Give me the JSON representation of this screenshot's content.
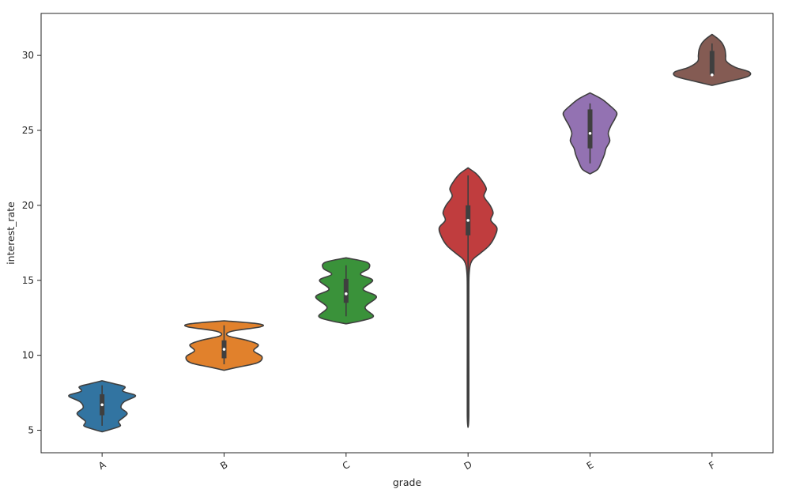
{
  "chart_data": {
    "type": "violin",
    "title": "",
    "xlabel": "grade",
    "ylabel": "interest_rate",
    "categories": [
      "A",
      "B",
      "C",
      "D",
      "E",
      "F"
    ],
    "ylim": [
      3.5,
      32.8
    ],
    "yticks": [
      5,
      10,
      15,
      20,
      25,
      30
    ],
    "grid": false,
    "legend": "none",
    "colors": [
      "#3274a1",
      "#e1812c",
      "#3a923a",
      "#c03d3e",
      "#9372b2",
      "#845b53"
    ],
    "edge_color": "#3f3f3f",
    "violins": [
      {
        "category": "A",
        "min": 5.3,
        "q1": 6.0,
        "median": 6.7,
        "q3": 7.4,
        "max": 8.0,
        "profile": [
          [
            4.9,
            0.0
          ],
          [
            5.1,
            0.28
          ],
          [
            5.3,
            0.48
          ],
          [
            5.6,
            0.44
          ],
          [
            6.1,
            0.66
          ],
          [
            6.5,
            0.5
          ],
          [
            6.9,
            0.58
          ],
          [
            7.3,
            0.88
          ],
          [
            7.6,
            0.55
          ],
          [
            7.9,
            0.6
          ],
          [
            8.1,
            0.32
          ],
          [
            8.3,
            0.0
          ]
        ]
      },
      {
        "category": "B",
        "min": 9.4,
        "q1": 9.8,
        "median": 10.4,
        "q3": 11.0,
        "max": 12.0,
        "profile": [
          [
            9.0,
            0.0
          ],
          [
            9.2,
            0.35
          ],
          [
            9.5,
            0.88
          ],
          [
            9.9,
            1.0
          ],
          [
            10.3,
            0.78
          ],
          [
            10.7,
            0.9
          ],
          [
            11.0,
            0.6
          ],
          [
            11.3,
            0.1
          ],
          [
            11.6,
            0.2
          ],
          [
            11.9,
            0.96
          ],
          [
            12.1,
            0.9
          ],
          [
            12.3,
            0.0
          ]
        ]
      },
      {
        "category": "C",
        "min": 12.6,
        "q1": 13.5,
        "median": 14.1,
        "q3": 15.1,
        "max": 16.0,
        "profile": [
          [
            12.1,
            0.0
          ],
          [
            12.3,
            0.4
          ],
          [
            12.6,
            0.72
          ],
          [
            13.2,
            0.5
          ],
          [
            13.9,
            0.8
          ],
          [
            14.4,
            0.45
          ],
          [
            15.0,
            0.7
          ],
          [
            15.4,
            0.38
          ],
          [
            15.8,
            0.6
          ],
          [
            16.2,
            0.55
          ],
          [
            16.5,
            0.0
          ]
        ]
      },
      {
        "category": "D",
        "min": 5.2,
        "q1": 18.0,
        "median": 19.0,
        "q3": 20.0,
        "max": 22.0,
        "profile": [
          [
            5.2,
            0.0
          ],
          [
            6.0,
            0.02
          ],
          [
            10.0,
            0.02
          ],
          [
            14.0,
            0.02
          ],
          [
            15.5,
            0.03
          ],
          [
            16.3,
            0.1
          ],
          [
            16.8,
            0.32
          ],
          [
            17.3,
            0.55
          ],
          [
            17.9,
            0.7
          ],
          [
            18.5,
            0.76
          ],
          [
            19.0,
            0.6
          ],
          [
            19.5,
            0.66
          ],
          [
            20.0,
            0.58
          ],
          [
            20.6,
            0.42
          ],
          [
            21.1,
            0.48
          ],
          [
            21.6,
            0.38
          ],
          [
            22.1,
            0.22
          ],
          [
            22.5,
            0.0
          ]
        ]
      },
      {
        "category": "E",
        "min": 22.8,
        "q1": 23.8,
        "median": 24.8,
        "q3": 26.4,
        "max": 26.8,
        "profile": [
          [
            22.1,
            0.0
          ],
          [
            22.4,
            0.2
          ],
          [
            22.9,
            0.3
          ],
          [
            23.4,
            0.38
          ],
          [
            23.8,
            0.42
          ],
          [
            24.3,
            0.52
          ],
          [
            24.8,
            0.48
          ],
          [
            25.3,
            0.55
          ],
          [
            25.8,
            0.66
          ],
          [
            26.2,
            0.7
          ],
          [
            26.7,
            0.5
          ],
          [
            27.1,
            0.3
          ],
          [
            27.5,
            0.0
          ]
        ]
      },
      {
        "category": "F",
        "min": 28.6,
        "q1": 28.7,
        "median": 28.7,
        "q3": 30.3,
        "max": 30.8,
        "profile": [
          [
            28.0,
            0.0
          ],
          [
            28.3,
            0.5
          ],
          [
            28.6,
            0.95
          ],
          [
            28.9,
            0.98
          ],
          [
            29.2,
            0.62
          ],
          [
            29.6,
            0.38
          ],
          [
            30.0,
            0.36
          ],
          [
            30.4,
            0.34
          ],
          [
            30.8,
            0.27
          ],
          [
            31.1,
            0.16
          ],
          [
            31.4,
            0.0
          ]
        ]
      }
    ]
  }
}
